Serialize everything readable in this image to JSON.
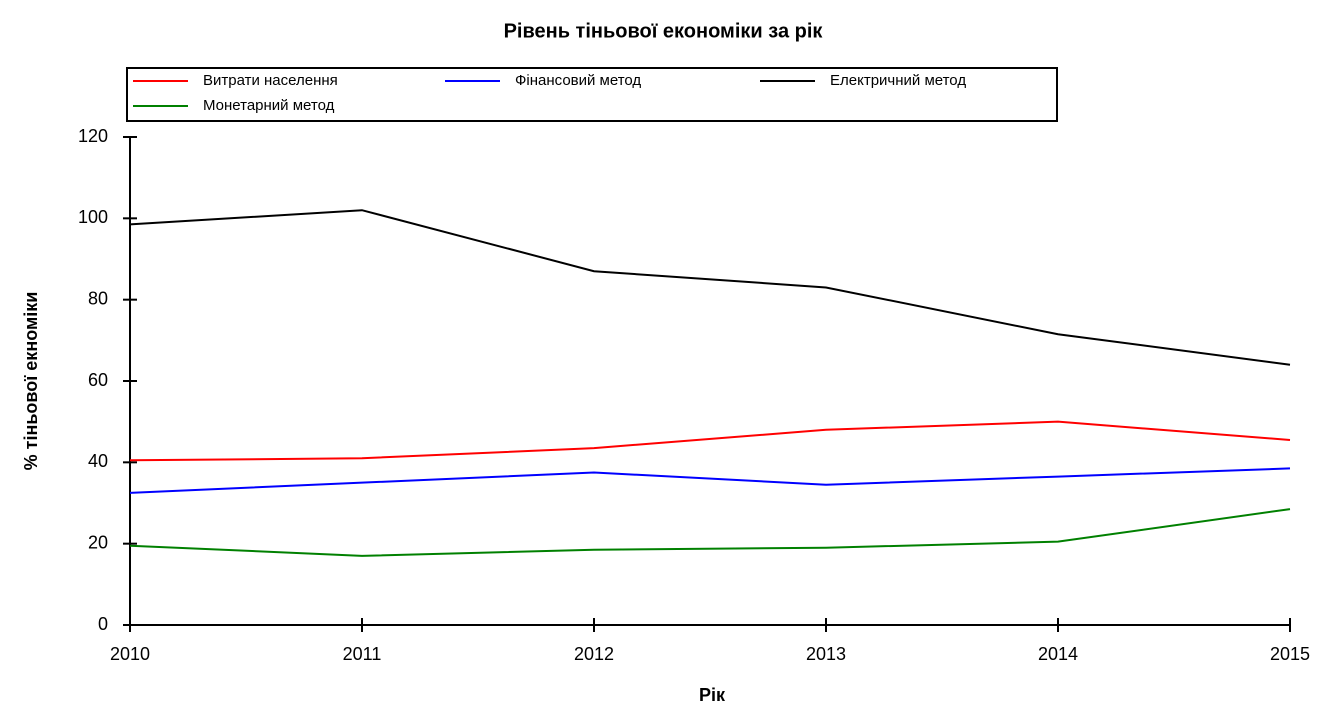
{
  "chart_data": {
    "type": "line",
    "title": "Рівень тіньової економіки за рік",
    "x_label": "Рік",
    "y_label": "% тіньової екноміки",
    "x": [
      2010,
      2011,
      2012,
      2013,
      2014,
      2015
    ],
    "series": [
      {
        "name": "Витрати населення",
        "color": "#ff0000",
        "values": [
          40.5,
          41,
          43.5,
          48,
          50,
          45.5
        ]
      },
      {
        "name": "Фінансовий метод",
        "color": "#0000ff",
        "values": [
          32.5,
          35,
          37.5,
          34.5,
          36.5,
          38.5
        ]
      },
      {
        "name": "Електричний метод",
        "color": "#000000",
        "values": [
          98.5,
          102,
          87,
          83,
          71.5,
          64
        ]
      },
      {
        "name": "Монетарний метод",
        "color": "#008000",
        "values": [
          19.5,
          17,
          18.5,
          19,
          20.5,
          28.5
        ]
      }
    ],
    "xlim": [
      2010,
      2015
    ],
    "xticks": [
      2010,
      2011,
      2012,
      2013,
      2014,
      2015
    ],
    "ylim": [
      0,
      120
    ],
    "yticks": [
      0,
      20,
      40,
      60,
      80,
      100,
      120
    ],
    "grid": false,
    "legend_position": "top"
  }
}
